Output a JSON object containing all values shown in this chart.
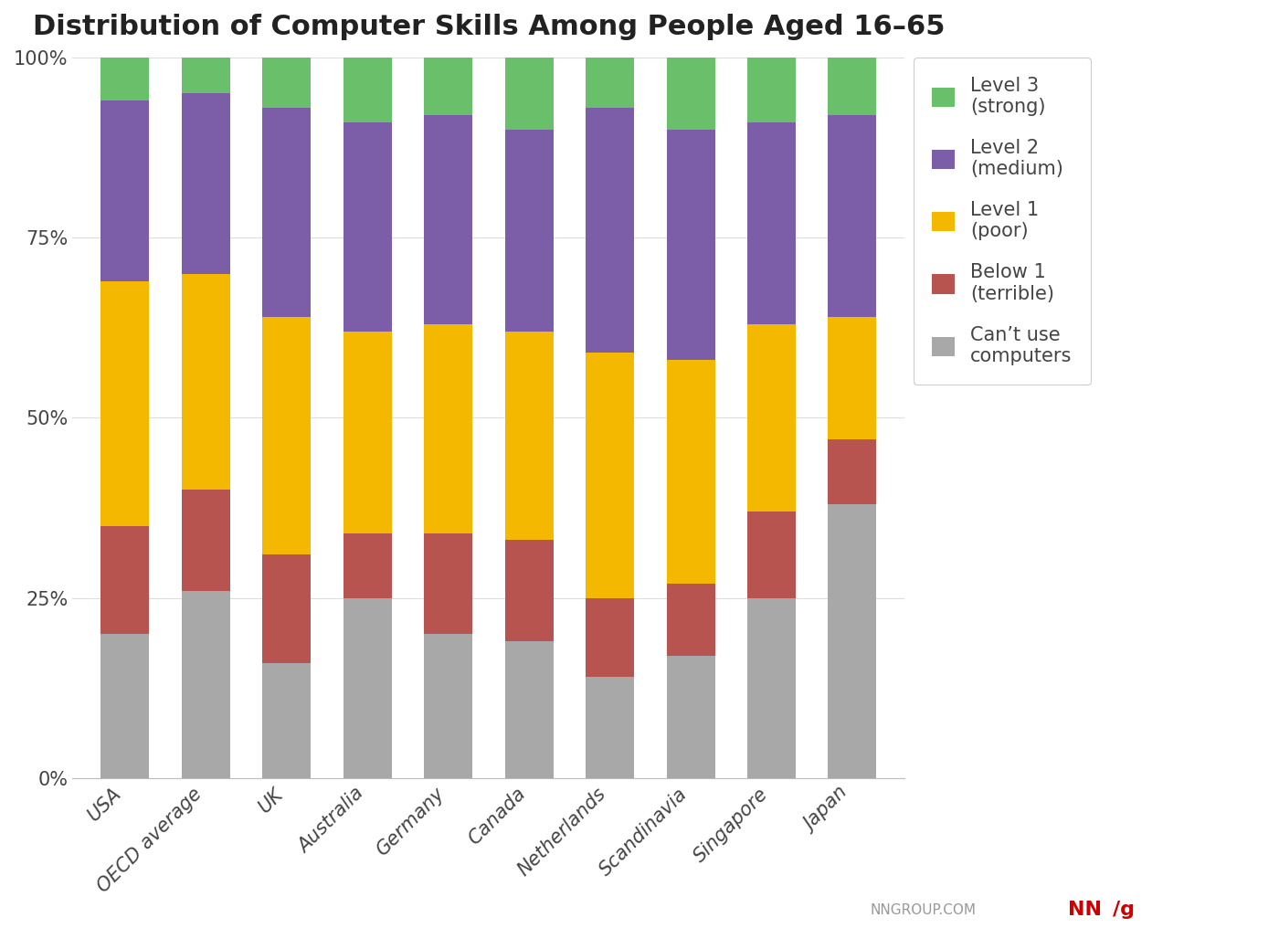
{
  "categories": [
    "USA",
    "OECD average",
    "UK",
    "Australia",
    "Germany",
    "Canada",
    "Netherlands",
    "Scandinavia",
    "Singapore",
    "Japan"
  ],
  "segments": {
    "cant_use": [
      20,
      26,
      16,
      25,
      20,
      19,
      14,
      17,
      25,
      38
    ],
    "below1": [
      15,
      14,
      15,
      9,
      14,
      14,
      11,
      10,
      12,
      9
    ],
    "level1": [
      34,
      30,
      33,
      28,
      29,
      29,
      34,
      31,
      26,
      17
    ],
    "level2": [
      25,
      25,
      29,
      29,
      29,
      28,
      34,
      32,
      28,
      28
    ],
    "level3": [
      6,
      5,
      7,
      9,
      8,
      10,
      7,
      10,
      9,
      8
    ]
  },
  "colors": {
    "cant_use": "#a8a8a8",
    "below1": "#b85450",
    "level1": "#f5b800",
    "level2": "#7b5ea7",
    "level3": "#6abf6a"
  },
  "legend_labels": {
    "level3": "Level 3\n(strong)",
    "level2": "Level 2\n(medium)",
    "level1": "Level 1\n(poor)",
    "below1": "Below 1\n(terrible)",
    "cant_use": "Can’t use\ncomputers"
  },
  "title": "Distribution of Computer Skills Among People Aged 16–65",
  "title_fontsize": 22,
  "tick_fontsize": 15,
  "legend_fontsize": 15,
  "yticks": [
    0,
    25,
    50,
    75,
    100
  ],
  "background_color": "#ffffff",
  "watermark": "NNGROUP.COM",
  "bar_width": 0.6
}
